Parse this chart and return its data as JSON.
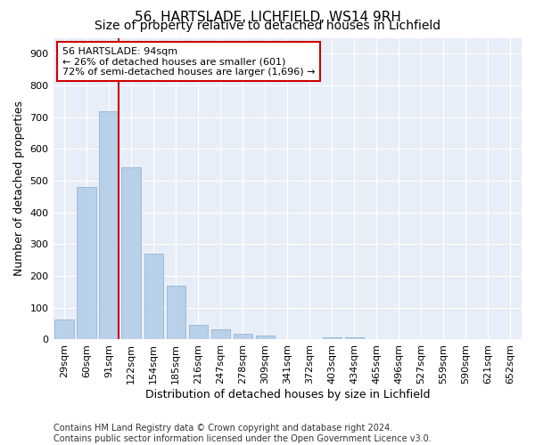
{
  "title": "56, HARTSLADE, LICHFIELD, WS14 9RH",
  "subtitle": "Size of property relative to detached houses in Lichfield",
  "xlabel": "Distribution of detached houses by size in Lichfield",
  "ylabel": "Number of detached properties",
  "categories": [
    "29sqm",
    "60sqm",
    "91sqm",
    "122sqm",
    "154sqm",
    "185sqm",
    "216sqm",
    "247sqm",
    "278sqm",
    "309sqm",
    "341sqm",
    "372sqm",
    "403sqm",
    "434sqm",
    "465sqm",
    "496sqm",
    "527sqm",
    "559sqm",
    "590sqm",
    "621sqm",
    "652sqm"
  ],
  "values": [
    63,
    480,
    720,
    543,
    270,
    170,
    47,
    32,
    17,
    13,
    0,
    0,
    7,
    7,
    0,
    0,
    0,
    0,
    0,
    0,
    0
  ],
  "bar_color": "#b8d0e8",
  "bar_edge_color": "#8ab0d0",
  "annotation_line1": "56 HARTSLADE: 94sqm",
  "annotation_line2": "← 26% of detached houses are smaller (601)",
  "annotation_line3": "72% of semi-detached houses are larger (1,696) →",
  "annotation_box_color": "#ffffff",
  "annotation_box_edge_color": "#cc0000",
  "ylim": [
    0,
    950
  ],
  "yticks": [
    0,
    100,
    200,
    300,
    400,
    500,
    600,
    700,
    800,
    900
  ],
  "background_color": "#e8eef8",
  "footer_line1": "Contains HM Land Registry data © Crown copyright and database right 2024.",
  "footer_line2": "Contains public sector information licensed under the Open Government Licence v3.0.",
  "title_fontsize": 11,
  "subtitle_fontsize": 10,
  "axis_label_fontsize": 9,
  "tick_fontsize": 8,
  "annotation_fontsize": 8,
  "footer_fontsize": 7
}
